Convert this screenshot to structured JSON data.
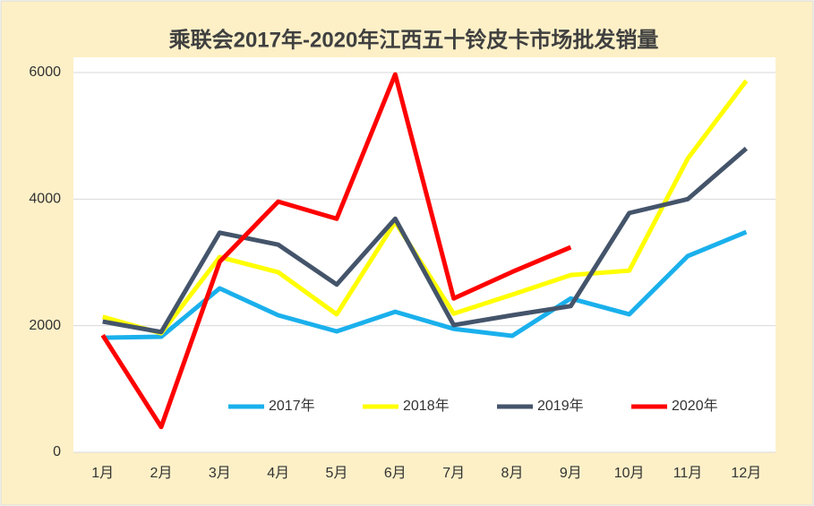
{
  "chart_data": {
    "type": "line",
    "title": "乘联会2017年-2020年江西五十铃皮卡市场批发销量",
    "categories": [
      "1月",
      "2月",
      "3月",
      "4月",
      "5月",
      "6月",
      "7月",
      "8月",
      "9月",
      "10月",
      "11月",
      "12月"
    ],
    "series": [
      {
        "name": "2017年",
        "color": "#1ab0ec",
        "values": [
          1810,
          1825,
          2590,
          2165,
          1910,
          2220,
          1950,
          1840,
          2430,
          2180,
          3100,
          3480
        ]
      },
      {
        "name": "2018年",
        "color": "#ffff00",
        "values": [
          2140,
          1880,
          3085,
          2845,
          2180,
          3640,
          2190,
          2490,
          2800,
          2870,
          4640,
          5870
        ]
      },
      {
        "name": "2019年",
        "color": "#44546a",
        "values": [
          2065,
          1900,
          3470,
          3280,
          2650,
          3690,
          2010,
          2165,
          2310,
          3780,
          4000,
          4800
        ]
      },
      {
        "name": "2020年",
        "color": "#ff0000",
        "values": [
          1850,
          400,
          3010,
          3960,
          3690,
          5970,
          2430,
          2850,
          3240,
          null,
          null,
          null
        ]
      }
    ],
    "ylim": [
      0,
      6000
    ],
    "yticks": [
      0,
      2000,
      4000,
      6000
    ],
    "grid": true,
    "legend": "bottom"
  }
}
